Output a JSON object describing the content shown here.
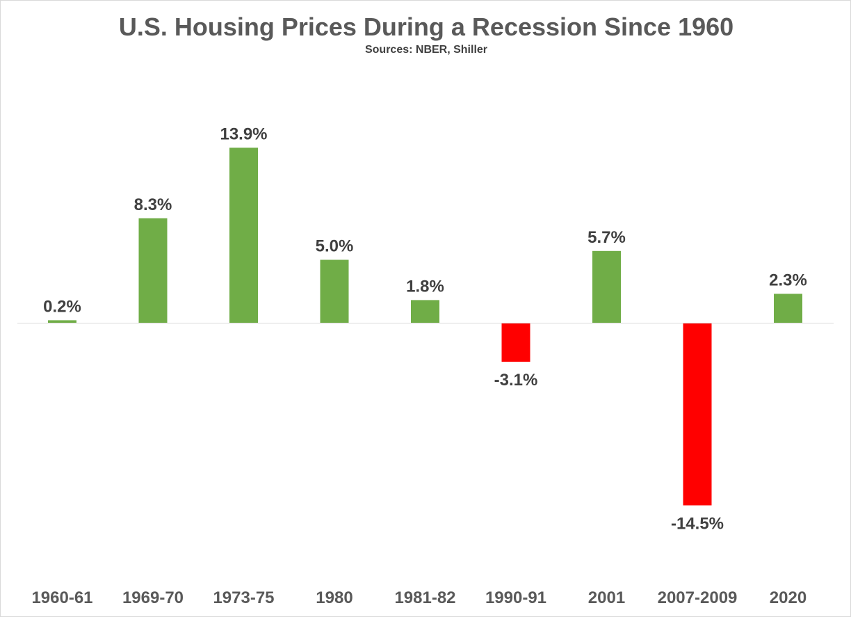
{
  "chart_data": {
    "type": "bar",
    "title": "U.S. Housing Prices During a Recession Since 1960",
    "subtitle": "Sources: NBER, Shiller",
    "xlabel": "",
    "ylabel": "",
    "categories": [
      "1960-61",
      "1969-70",
      "1973-75",
      "1980",
      "1981-82",
      "1990-91",
      "2001",
      "2007-2009",
      "2020"
    ],
    "values": [
      0.2,
      8.3,
      13.9,
      5.0,
      1.8,
      -3.1,
      5.7,
      -14.5,
      2.3
    ],
    "value_labels": [
      "0.2%",
      "8.3%",
      "13.9%",
      "5.0%",
      "1.8%",
      "-3.1%",
      "5.7%",
      "-14.5%",
      "2.3%"
    ],
    "ylim": [
      -20,
      16
    ],
    "grid": false,
    "legend": "none",
    "colors": {
      "positive": "#70ad47",
      "negative": "#ff0000",
      "baseline": "#d9d9d9"
    }
  }
}
